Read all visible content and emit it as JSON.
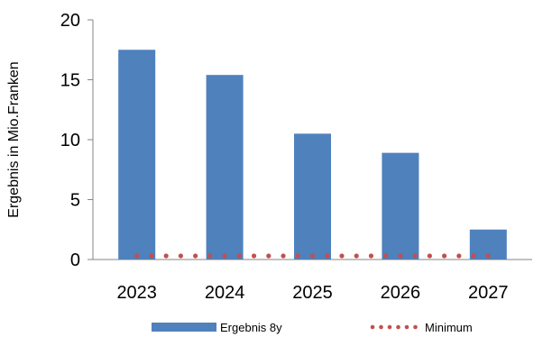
{
  "chart_data": {
    "type": "bar",
    "categories": [
      "2023",
      "2024",
      "2025",
      "2026",
      "2027"
    ],
    "series": [
      {
        "name": "Ergebnis 8y",
        "kind": "bar",
        "color": "#4F81BD",
        "values": [
          17.5,
          15.4,
          10.5,
          8.9,
          2.5
        ]
      },
      {
        "name": "Minimum",
        "kind": "line-dotted",
        "color": "#C0504D",
        "values": [
          0.3,
          0.3,
          0.3,
          0.3,
          0.3
        ]
      }
    ],
    "title": "",
    "xlabel": "",
    "ylabel": "Ergebnis in Mio.Franken",
    "ylim": [
      0,
      20
    ],
    "yticks": [
      0,
      5,
      10,
      15,
      20
    ],
    "grid": false,
    "legend": "bottom"
  }
}
